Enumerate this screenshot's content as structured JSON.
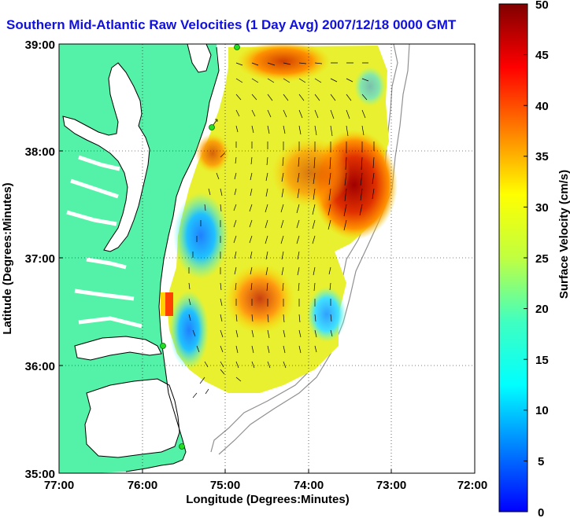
{
  "title": "Southern Mid-Atlantic Raw Velocities (1 Day Avg) 2007/12/18 0000 GMT",
  "xlabel": "Longitude (Degrees:Minutes)",
  "ylabel": "Latitude (Degrees:Minutes)",
  "x_ticks": [
    "77:00",
    "76:00",
    "75:00",
    "74:00",
    "73:00",
    "72:00"
  ],
  "y_ticks": [
    "39:00",
    "38:00",
    "37:00",
    "36:00",
    "35:00"
  ],
  "colorbar": {
    "label": "Surface Velocity (cm/s)",
    "ticks": [
      "50",
      "45",
      "40",
      "35",
      "30",
      "25",
      "20",
      "15",
      "10",
      "5",
      "0"
    ],
    "min": 0,
    "max": 50,
    "colormap": "jet"
  },
  "colors": {
    "land": "#54f2a8",
    "water": "#ffffff",
    "title": "#1010e0",
    "arrows": "#000000",
    "coastline": "#000000",
    "bathymetry": "#909090",
    "stations": "#22dd22"
  },
  "map_extent": {
    "lon": [
      -77,
      -72
    ],
    "lat": [
      35,
      39
    ]
  }
}
